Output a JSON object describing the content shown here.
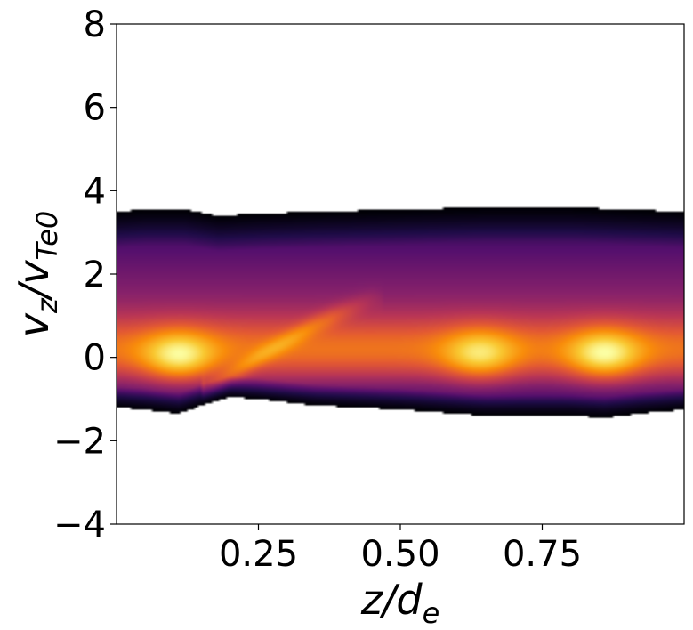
{
  "chart_data": {
    "type": "heatmap",
    "title": "",
    "xlabel_main": "z/d",
    "xlabel_sub": "e",
    "ylabel_main": "v",
    "ylabel_sub1": "z",
    "ylabel_mid": "/v",
    "ylabel_sub2": "Te0",
    "xlim": [
      0.0,
      1.0
    ],
    "ylim": [
      -4,
      8
    ],
    "xticks": [
      0.25,
      0.5,
      0.75
    ],
    "xtick_labels": [
      "0.25",
      "0.50",
      "0.75"
    ],
    "yticks": [
      -4,
      -2,
      0,
      2,
      4,
      6,
      8
    ],
    "ytick_labels": [
      "−4",
      "−2",
      "0",
      "2",
      "4",
      "6",
      "8"
    ],
    "colormap": "inferno",
    "grid": false,
    "distribution": {
      "upper_edge": {
        "z": [
          0.0,
          0.05,
          0.12,
          0.18,
          0.25,
          0.35,
          0.5,
          0.65,
          0.8,
          0.9,
          1.0
        ],
        "v": [
          3.5,
          3.55,
          3.55,
          3.4,
          3.45,
          3.5,
          3.55,
          3.6,
          3.6,
          3.55,
          3.5
        ]
      },
      "lower_edge": {
        "z": [
          0.0,
          0.05,
          0.11,
          0.16,
          0.2,
          0.25,
          0.35,
          0.5,
          0.65,
          0.8,
          0.86,
          0.92,
          1.0
        ],
        "v": [
          -1.2,
          -1.25,
          -1.35,
          -1.1,
          -0.95,
          -1.0,
          -1.15,
          -1.25,
          -1.4,
          -1.4,
          -1.45,
          -1.35,
          -1.25
        ]
      },
      "hot_spots": [
        {
          "z": 0.11,
          "v": 0.0,
          "intensity": 1.0
        },
        {
          "z": 0.64,
          "v": 0.05,
          "intensity": 0.85
        },
        {
          "z": 0.86,
          "v": 0.05,
          "intensity": 1.0
        }
      ],
      "beam_arm": {
        "z": [
          0.16,
          0.25,
          0.35,
          0.45
        ],
        "v": [
          -0.8,
          0.0,
          0.8,
          1.4
        ]
      }
    }
  }
}
